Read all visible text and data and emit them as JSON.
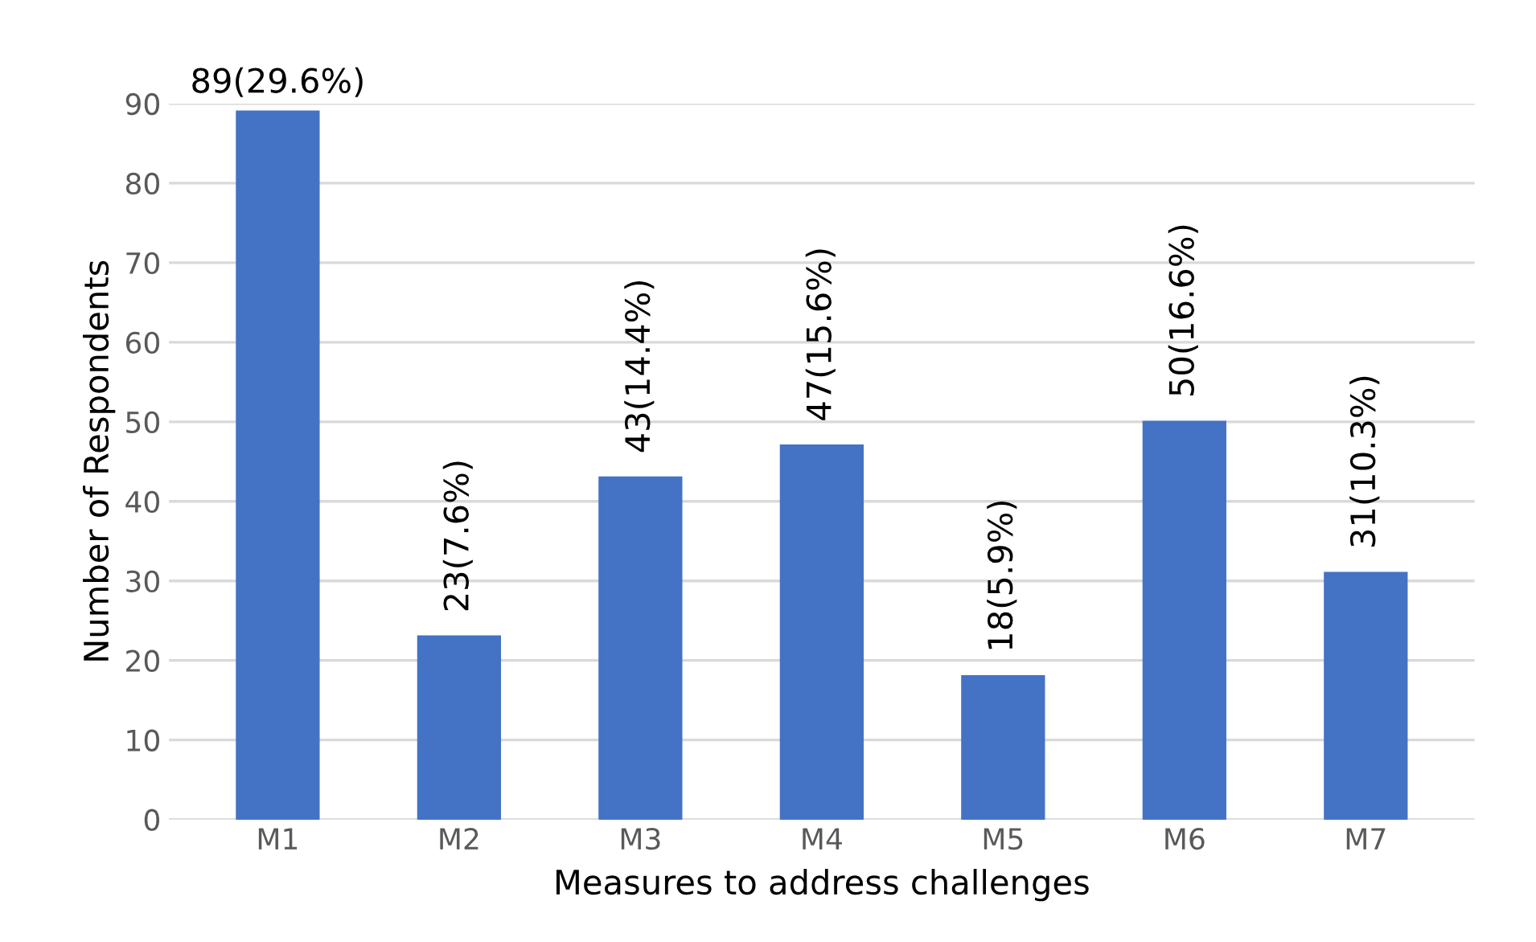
{
  "chart_data": {
    "type": "bar",
    "xlabel": "Measures to address challenges",
    "ylabel": "Number of Respondents",
    "categories": [
      "M1",
      "M2",
      "M3",
      "M4",
      "M5",
      "M6",
      "M7"
    ],
    "values": [
      89,
      23,
      43,
      47,
      18,
      50,
      31
    ],
    "value_labels": [
      "89(29.6%)",
      "23(7.6%)",
      "43(14.4%)",
      "47(15.6%)",
      "18(5.9%)",
      "50(16.6%)",
      "31(10.3%)"
    ],
    "color": "#4472c4",
    "ylim": [
      0,
      90
    ],
    "yticks": [
      0,
      10,
      20,
      30,
      40,
      50,
      60,
      70,
      80,
      90
    ],
    "grid": "y"
  }
}
